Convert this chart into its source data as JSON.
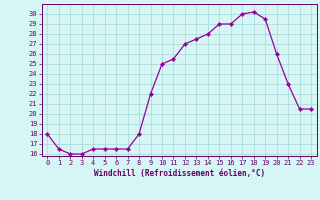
{
  "x": [
    0,
    1,
    2,
    3,
    4,
    5,
    6,
    7,
    8,
    9,
    10,
    11,
    12,
    13,
    14,
    15,
    16,
    17,
    18,
    19,
    20,
    21,
    22,
    23
  ],
  "y": [
    18,
    16.5,
    16,
    16,
    16.5,
    16.5,
    16.5,
    16.5,
    18,
    22,
    25,
    25.5,
    27,
    27.5,
    28,
    29,
    29,
    30,
    30.2,
    29.5,
    26,
    23,
    20.5,
    20.5
  ],
  "xlabel": "Windchill (Refroidissement éolien,°C)",
  "ylim_bottom": 15.8,
  "ylim_top": 31.0,
  "xlim_left": -0.5,
  "xlim_right": 23.5,
  "yticks": [
    16,
    17,
    18,
    19,
    20,
    21,
    22,
    23,
    24,
    25,
    26,
    27,
    28,
    29,
    30
  ],
  "xticks": [
    0,
    1,
    2,
    3,
    4,
    5,
    6,
    7,
    8,
    9,
    10,
    11,
    12,
    13,
    14,
    15,
    16,
    17,
    18,
    19,
    20,
    21,
    22,
    23
  ],
  "line_color": "#990099",
  "marker_color": "#990099",
  "bg_color": "#d6f5f5",
  "grid_color": "#aadddd",
  "text_color": "#660066",
  "tick_color": "#660066",
  "tick_fontsize": 5.0,
  "xlabel_fontsize": 5.5,
  "marker_size": 2.2,
  "linewidth": 0.9
}
